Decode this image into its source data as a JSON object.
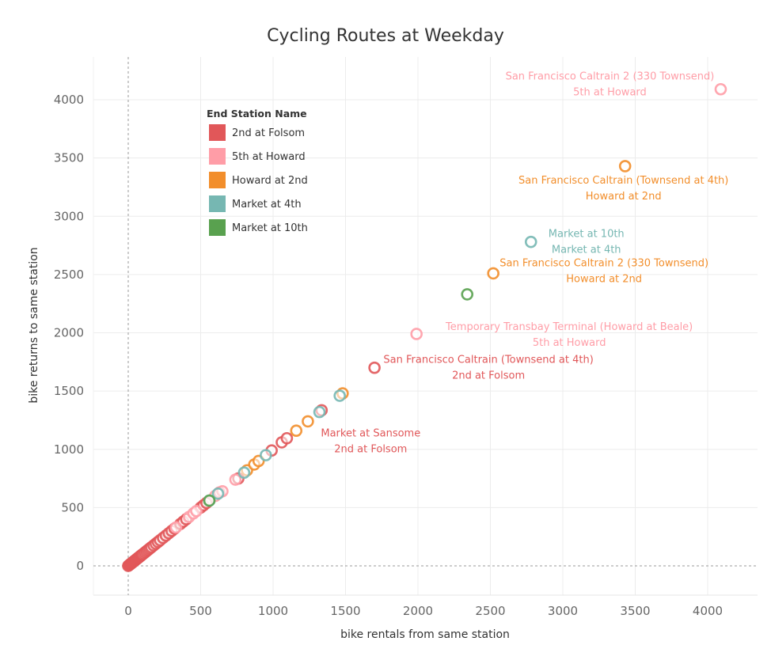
{
  "chart_data": {
    "type": "scatter",
    "title": "Cycling Routes at Weekday",
    "xlabel": "bike rentals from same station",
    "ylabel": "bike returns to same station",
    "xlim": [
      -250,
      4300
    ],
    "ylim": [
      -250,
      4350
    ],
    "x_ticks": [
      0,
      500,
      1000,
      1500,
      2000,
      2500,
      3000,
      3500,
      4000
    ],
    "y_ticks": [
      0,
      500,
      1000,
      1500,
      2000,
      2500,
      3000,
      3500,
      4000
    ],
    "x_tick_labels": [
      "0",
      "500",
      "1000",
      "1500",
      "2000",
      "2500",
      "3000",
      "3500",
      "4000"
    ],
    "y_tick_labels": [
      "0",
      "500",
      "1000",
      "1500",
      "2000",
      "2500",
      "3000",
      "3500",
      "4000"
    ],
    "grid": true,
    "zero_lines": "dashed",
    "legend": {
      "title": "End Station Name",
      "position": "upper-left",
      "entries": [
        {
          "name": "2nd at Folsom",
          "color": "#e15759"
        },
        {
          "name": "5th at Howard",
          "color": "#ff9da7"
        },
        {
          "name": "Howard at 2nd",
          "color": "#f28e2b"
        },
        {
          "name": "Market at 4th",
          "color": "#76b7b2"
        },
        {
          "name": "Market at 10th",
          "color": "#59a14f"
        }
      ]
    },
    "series": [
      {
        "name": "2nd at Folsom",
        "color": "#e15759",
        "points": [
          [
            0,
            0
          ],
          [
            5,
            5
          ],
          [
            10,
            10
          ],
          [
            15,
            15
          ],
          [
            20,
            20
          ],
          [
            25,
            25
          ],
          [
            30,
            30
          ],
          [
            35,
            35
          ],
          [
            40,
            40
          ],
          [
            45,
            45
          ],
          [
            50,
            50
          ],
          [
            55,
            55
          ],
          [
            60,
            60
          ],
          [
            65,
            65
          ],
          [
            70,
            70
          ],
          [
            75,
            75
          ],
          [
            80,
            80
          ],
          [
            85,
            85
          ],
          [
            90,
            90
          ],
          [
            95,
            95
          ],
          [
            100,
            100
          ],
          [
            110,
            110
          ],
          [
            120,
            120
          ],
          [
            130,
            130
          ],
          [
            140,
            140
          ],
          [
            150,
            150
          ],
          [
            160,
            160
          ],
          [
            175,
            175
          ],
          [
            190,
            190
          ],
          [
            205,
            205
          ],
          [
            220,
            220
          ],
          [
            240,
            240
          ],
          [
            260,
            260
          ],
          [
            280,
            280
          ],
          [
            300,
            300
          ],
          [
            320,
            320
          ],
          [
            360,
            360
          ],
          [
            380,
            380
          ],
          [
            400,
            400
          ],
          [
            500,
            500
          ],
          [
            520,
            520
          ],
          [
            540,
            540
          ],
          [
            760,
            750
          ],
          [
            990,
            990
          ],
          [
            1060,
            1060
          ],
          [
            1095,
            1095
          ],
          [
            1335,
            1335
          ],
          [
            1700,
            1700
          ]
        ]
      },
      {
        "name": "5th at Howard",
        "color": "#ff9da7",
        "points": [
          [
            330,
            330
          ],
          [
            420,
            420
          ],
          [
            450,
            450
          ],
          [
            470,
            470
          ],
          [
            600,
            600
          ],
          [
            630,
            630
          ],
          [
            650,
            640
          ],
          [
            740,
            740
          ],
          [
            1990,
            1990
          ],
          [
            4090,
            4090
          ]
        ]
      },
      {
        "name": "Howard at 2nd",
        "color": "#f28e2b",
        "points": [
          [
            820,
            820
          ],
          [
            870,
            870
          ],
          [
            900,
            900
          ],
          [
            1160,
            1160
          ],
          [
            1240,
            1240
          ],
          [
            1480,
            1480
          ],
          [
            2520,
            2510
          ],
          [
            3430,
            3430
          ]
        ]
      },
      {
        "name": "Market at 4th",
        "color": "#76b7b2",
        "points": [
          [
            560,
            560
          ],
          [
            620,
            620
          ],
          [
            800,
            800
          ],
          [
            950,
            950
          ],
          [
            1320,
            1320
          ],
          [
            1460,
            1460
          ],
          [
            2780,
            2780
          ]
        ]
      },
      {
        "name": "Market at 10th",
        "color": "#59a14f",
        "points": [
          [
            560,
            560
          ],
          [
            2340,
            2330
          ]
        ]
      }
    ],
    "annotations": [
      {
        "lines": [
          "San Francisco Caltrain 2 (330 Townsend)",
          "5th at Howard"
        ],
        "color": "#ff9da7",
        "anchor": "end",
        "at": [
          4090,
          4090
        ]
      },
      {
        "lines": [
          "San Francisco Caltrain (Townsend at 4th)",
          "Howard at 2nd"
        ],
        "color": "#f28e2b",
        "anchor": "middle",
        "at": [
          3430,
          3430
        ]
      },
      {
        "lines": [
          "Market at 10th",
          "Market at 4th"
        ],
        "color": "#76b7b2",
        "anchor": "start",
        "at": [
          2780,
          2780
        ]
      },
      {
        "lines": [
          "San Francisco Caltrain 2 (330 Townsend)",
          "Howard at 2nd"
        ],
        "color": "#f28e2b",
        "anchor": "start",
        "at": [
          2520,
          2510
        ]
      },
      {
        "lines": [
          "Temporary Transbay Terminal (Howard at Beale)",
          "5th at Howard"
        ],
        "color": "#ff9da7",
        "anchor": "start",
        "at": [
          1990,
          1990
        ]
      },
      {
        "lines": [
          "San Francisco Caltrain (Townsend at 4th)",
          "2nd at Folsom"
        ],
        "color": "#e15759",
        "anchor": "start",
        "at": [
          1700,
          1700
        ]
      },
      {
        "lines": [
          "Market at Sansome",
          "2nd at Folsom"
        ],
        "color": "#e15759",
        "anchor": "middle",
        "at": [
          1335,
          1335
        ]
      }
    ]
  }
}
